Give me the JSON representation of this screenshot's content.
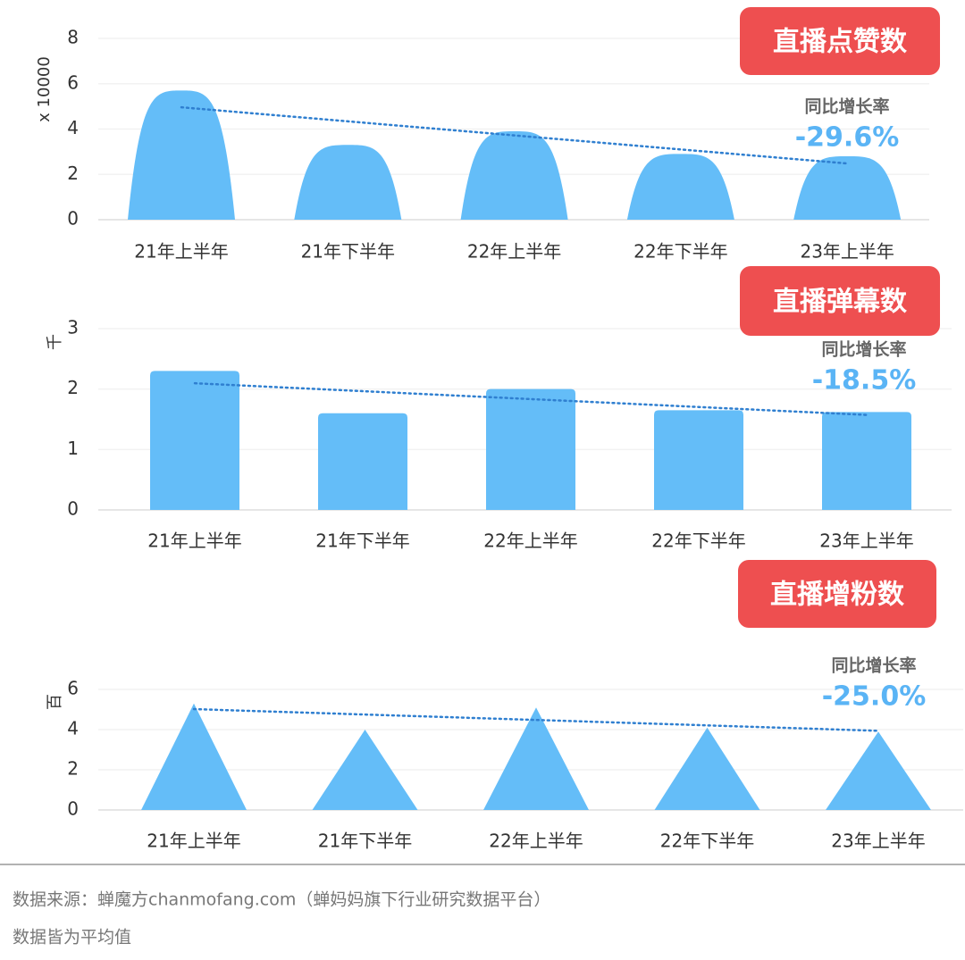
{
  "chart_data": [
    {
      "type": "bar",
      "bar_shape": "dome",
      "title": "直播点赞数",
      "y_label": "x 10000",
      "categories": [
        "21年上半年",
        "21年下半年",
        "22年上半年",
        "22年下半年",
        "23年上半年"
      ],
      "values": [
        5.7,
        3.3,
        3.9,
        2.9,
        2.8
      ],
      "color": "#64bdf8",
      "ylim": [
        0,
        8
      ],
      "yticks": [
        0,
        2,
        4,
        6,
        8
      ],
      "grid": true,
      "trendline": true,
      "trend_color": "#2f7fd0",
      "annotations": [
        "同比增长率",
        "-29.6%"
      ]
    },
    {
      "type": "bar",
      "bar_shape": "rounded",
      "title": "直播弹幕数",
      "y_label": "千",
      "categories": [
        "21年上半年",
        "21年下半年",
        "22年上半年",
        "22年下半年",
        "23年上半年"
      ],
      "values": [
        2.3,
        1.6,
        2.0,
        1.65,
        1.62
      ],
      "color": "#64bdf8",
      "ylim": [
        0,
        3
      ],
      "yticks": [
        0,
        1,
        2,
        3
      ],
      "grid": true,
      "trendline": true,
      "trend_color": "#2f7fd0",
      "annotations": [
        "同比增长率",
        "-18.5%"
      ]
    },
    {
      "type": "bar",
      "bar_shape": "triangle",
      "title": "直播增粉数",
      "y_label": "百",
      "categories": [
        "21年上半年",
        "21年下半年",
        "22年上半年",
        "22年下半年",
        "23年上半年"
      ],
      "values": [
        5.3,
        4.0,
        5.1,
        4.1,
        3.9
      ],
      "color": "#64bdf8",
      "ylim": [
        0,
        6
      ],
      "yticks": [
        0,
        2,
        4,
        6
      ],
      "grid": true,
      "trendline": true,
      "trend_color": "#2f7fd0",
      "annotations": [
        "同比增长率",
        "-25.0%"
      ]
    }
  ],
  "footer": {
    "source": "数据来源：蝉魔方chanmofang.com（蝉妈妈旗下行业研究数据平台）",
    "note": "数据皆为平均值"
  }
}
